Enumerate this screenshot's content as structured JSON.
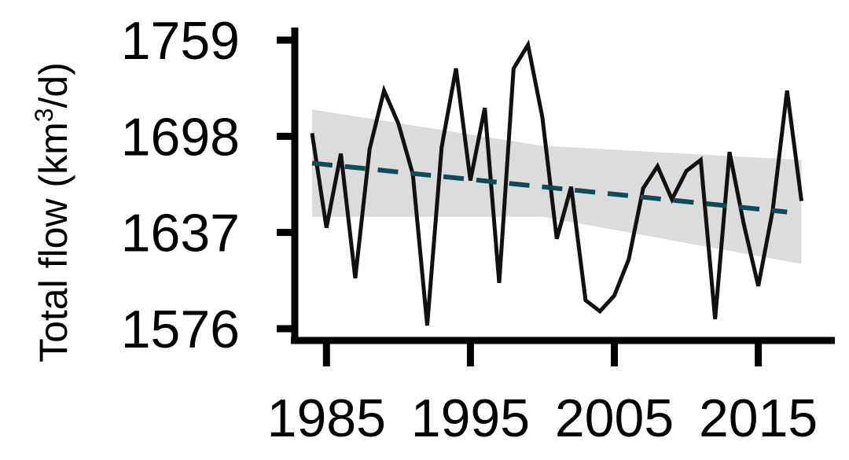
{
  "chart_data": {
    "type": "line",
    "title": "",
    "ylabel": "Total flow (km3/d)",
    "ylabel_parts": {
      "before": "Total flow (km",
      "sup": "3",
      "after": "/d)"
    },
    "xlabel": "",
    "x_ticks": [
      1985,
      1995,
      2005,
      2015
    ],
    "y_ticks": [
      1576,
      1637,
      1698,
      1759
    ],
    "xlim": [
      1982.8,
      2020.1
    ],
    "ylim": [
      1569,
      1767
    ],
    "grid": false,
    "legend": "none",
    "colors": {
      "observed": "#111111",
      "trend": "#0d4a5a",
      "ci_band": "#d0d0d0"
    },
    "series": [
      {
        "kind": "observed",
        "x": [
          1984,
          1985,
          1986,
          1987,
          1988,
          1989,
          1990,
          1991,
          1992,
          1993,
          1994,
          1995,
          1996,
          1997,
          1998,
          1999,
          2000,
          2001,
          2002,
          2003,
          2004,
          2005,
          2006,
          2007,
          2008,
          2009,
          2010,
          2011,
          2012,
          2013,
          2014,
          2015,
          2016,
          2017,
          2018
        ],
        "values": [
          1700,
          1640,
          1687,
          1608,
          1690,
          1727,
          1706,
          1674,
          1578,
          1691,
          1741,
          1670,
          1716,
          1605,
          1741,
          1756,
          1710,
          1633,
          1666,
          1594,
          1587,
          1597,
          1620,
          1665,
          1679,
          1658,
          1676,
          1683,
          1582,
          1688,
          1642,
          1603,
          1651,
          1727,
          1657
        ]
      },
      {
        "kind": "trend",
        "x": [
          1984,
          2017
        ],
        "values": [
          1681,
          1650
        ]
      },
      {
        "kind": "confidence_band",
        "x": [
          1984,
          2000,
          2018
        ],
        "upper": [
          1715,
          1692,
          1683
        ],
        "lower": [
          1647,
          1647,
          1617
        ]
      }
    ]
  }
}
